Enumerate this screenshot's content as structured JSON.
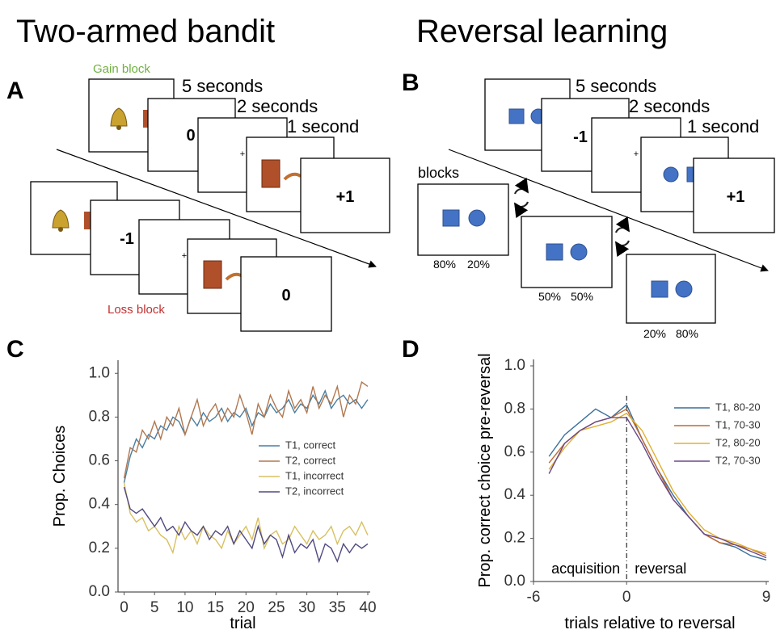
{
  "titles": [
    "Two-armed bandit",
    "Reversal learning"
  ],
  "panel_labels": [
    "A",
    "B",
    "C",
    "D"
  ],
  "panel_a": {
    "gain_label": "Gain block",
    "loss_label": "Loss block",
    "durations": [
      "5 seconds",
      "2 seconds",
      "1 second"
    ],
    "fixation": "+",
    "gain_outcomes": [
      "0",
      "+1"
    ],
    "loss_outcomes": [
      "-1",
      "0"
    ]
  },
  "panel_b": {
    "durations": [
      "5 seconds",
      "2 seconds",
      "1 second"
    ],
    "fixation": "+",
    "outcomes": [
      "-1",
      "+1"
    ],
    "blocks_label": "blocks",
    "blocks": [
      [
        "80%",
        "20%"
      ],
      [
        "50%",
        "50%"
      ],
      [
        "20%",
        "80%"
      ]
    ]
  },
  "chart_data": [
    {
      "type": "line",
      "xlabel": "trial",
      "ylabel": "Prop. Choices",
      "legend": "center right",
      "x": [
        0,
        1,
        2,
        3,
        4,
        5,
        6,
        7,
        8,
        9,
        10,
        11,
        12,
        13,
        14,
        15,
        16,
        17,
        18,
        19,
        20,
        21,
        22,
        23,
        24,
        25,
        26,
        27,
        28,
        29,
        30,
        31,
        32,
        33,
        34,
        35,
        36,
        37,
        38,
        39,
        40
      ],
      "xlim": [
        -1,
        40
      ],
      "ylim": [
        0,
        1.06
      ],
      "xticks": [
        0,
        5,
        10,
        15,
        20,
        25,
        30,
        35,
        40
      ],
      "yticks": [
        {
          "value": 0,
          "label": "0.0"
        },
        0.2,
        0.4,
        0.6,
        0.8,
        {
          "value": 1,
          "label": "1.0"
        }
      ],
      "series": [
        {
          "name": "T1, correct",
          "color": "#4a7fa0",
          "values": [
            0.5,
            0.62,
            0.7,
            0.66,
            0.72,
            0.7,
            0.76,
            0.74,
            0.8,
            0.78,
            0.72,
            0.8,
            0.76,
            0.82,
            0.78,
            0.8,
            0.84,
            0.78,
            0.82,
            0.8,
            0.84,
            0.76,
            0.82,
            0.8,
            0.86,
            0.82,
            0.84,
            0.88,
            0.82,
            0.86,
            0.84,
            0.9,
            0.86,
            0.92,
            0.84,
            0.88,
            0.9,
            0.86,
            0.88,
            0.84,
            0.88
          ]
        },
        {
          "name": "T2, correct",
          "color": "#b07850",
          "values": [
            0.52,
            0.66,
            0.64,
            0.74,
            0.7,
            0.78,
            0.7,
            0.8,
            0.76,
            0.84,
            0.72,
            0.8,
            0.88,
            0.76,
            0.82,
            0.86,
            0.78,
            0.84,
            0.8,
            0.9,
            0.82,
            0.72,
            0.86,
            0.8,
            0.9,
            0.84,
            0.8,
            0.92,
            0.84,
            0.88,
            0.82,
            0.94,
            0.84,
            0.9,
            0.86,
            0.94,
            0.8,
            0.9,
            0.86,
            0.96,
            0.94
          ]
        },
        {
          "name": "T1, incorrect",
          "color": "#d8c060",
          "values": [
            0.5,
            0.36,
            0.32,
            0.34,
            0.28,
            0.3,
            0.26,
            0.24,
            0.18,
            0.3,
            0.24,
            0.28,
            0.22,
            0.3,
            0.26,
            0.24,
            0.2,
            0.28,
            0.22,
            0.26,
            0.3,
            0.24,
            0.34,
            0.2,
            0.26,
            0.28,
            0.22,
            0.24,
            0.3,
            0.26,
            0.22,
            0.28,
            0.24,
            0.26,
            0.3,
            0.22,
            0.28,
            0.3,
            0.26,
            0.32,
            0.26
          ]
        },
        {
          "name": "T2, incorrect",
          "color": "#504a80",
          "values": [
            0.48,
            0.38,
            0.36,
            0.38,
            0.34,
            0.3,
            0.34,
            0.28,
            0.3,
            0.26,
            0.32,
            0.28,
            0.26,
            0.3,
            0.24,
            0.28,
            0.26,
            0.3,
            0.22,
            0.28,
            0.24,
            0.2,
            0.3,
            0.22,
            0.26,
            0.24,
            0.16,
            0.26,
            0.18,
            0.22,
            0.2,
            0.24,
            0.14,
            0.22,
            0.2,
            0.14,
            0.22,
            0.18,
            0.22,
            0.2,
            0.22
          ]
        }
      ]
    },
    {
      "type": "line",
      "xlabel": "trials relative to reversal",
      "ylabel": "Prop.  correct choice pre-reversal",
      "legend": "upper right",
      "x": [
        -5,
        -4,
        -3,
        -2,
        -1,
        0,
        1,
        2,
        3,
        4,
        5,
        6,
        7,
        8,
        9
      ],
      "xlim": [
        -6,
        9
      ],
      "ylim": [
        0,
        1.03
      ],
      "xticks": [
        -6,
        0,
        9
      ],
      "yticks": [
        {
          "value": 0,
          "label": "0.0"
        },
        0.2,
        0.4,
        0.6,
        0.8,
        {
          "value": 1,
          "label": "1.0"
        }
      ],
      "vline": 0,
      "annotations": [
        "acquisition",
        "reversal"
      ],
      "series": [
        {
          "name": "T1, 80-20",
          "color": "#3a6f9a",
          "values": [
            0.58,
            0.68,
            0.74,
            0.8,
            0.76,
            0.82,
            0.66,
            0.52,
            0.4,
            0.3,
            0.22,
            0.18,
            0.16,
            0.12,
            0.1
          ]
        },
        {
          "name": "T1, 70-30",
          "color": "#c06a30",
          "values": [
            0.55,
            0.64,
            0.7,
            0.74,
            0.76,
            0.8,
            0.66,
            0.52,
            0.38,
            0.3,
            0.22,
            0.18,
            0.17,
            0.15,
            0.12
          ]
        },
        {
          "name": "T2, 80-20",
          "color": "#e0b030",
          "values": [
            0.52,
            0.62,
            0.7,
            0.72,
            0.74,
            0.78,
            0.7,
            0.56,
            0.42,
            0.32,
            0.24,
            0.2,
            0.18,
            0.15,
            0.13
          ]
        },
        {
          "name": "T2, 70-30",
          "color": "#6a4a8a",
          "values": [
            0.5,
            0.64,
            0.7,
            0.74,
            0.76,
            0.76,
            0.64,
            0.5,
            0.38,
            0.3,
            0.22,
            0.2,
            0.17,
            0.14,
            0.11
          ]
        }
      ]
    }
  ]
}
